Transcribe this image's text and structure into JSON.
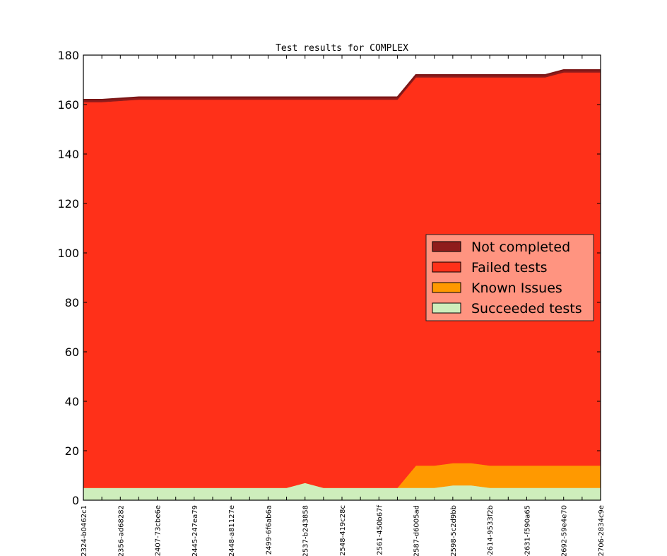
{
  "chart_data": {
    "type": "area",
    "stacked": true,
    "title": "Test results for COMPLEX",
    "xlabel": "",
    "ylabel": "",
    "ylim": [
      0,
      180
    ],
    "yticks": [
      0,
      20,
      40,
      60,
      80,
      100,
      120,
      140,
      160,
      180
    ],
    "grid": false,
    "legend_position": "center-right",
    "x": [
      "2324-b0462c1",
      "",
      "2356-ad68282",
      "",
      "2407-73cbe6e",
      "",
      "2445-247ea79",
      "",
      "2448-a81127e",
      "",
      "2499-6f6ab6a",
      "",
      "2537-b243858",
      "",
      "2548-419c28c",
      "",
      "2561-450b67f",
      "",
      "2587-d6005ad",
      "",
      "2598-5c2d9bb",
      "",
      "-2614-9533f2b",
      "",
      "-2631-f590a65",
      "",
      "2692-59e4e70",
      "",
      "2706-2834c9e"
    ],
    "series": [
      {
        "name": "Succeeded tests",
        "color": "#ceeebc",
        "values": [
          5,
          5,
          5,
          5,
          5,
          5,
          5,
          5,
          5,
          5,
          5,
          5,
          7,
          5,
          5,
          5,
          5,
          5,
          5,
          5,
          6,
          6,
          5,
          5,
          5,
          5,
          5,
          5,
          5
        ]
      },
      {
        "name": "Known Issues",
        "color": "#ff9900",
        "values": [
          0,
          0,
          0,
          0,
          0,
          0,
          0,
          0,
          0,
          0,
          0,
          0,
          0,
          0,
          0,
          0,
          0,
          0,
          9,
          9,
          9,
          9,
          9,
          9,
          9,
          9,
          9,
          9,
          9
        ]
      },
      {
        "name": "Failed tests",
        "color": "#ff3019",
        "values": [
          156,
          156,
          156.5,
          157,
          157,
          157,
          157,
          157,
          157,
          157,
          157,
          157,
          155,
          157,
          157,
          157,
          157,
          157,
          157,
          157,
          156,
          156,
          157,
          157,
          157,
          157,
          159,
          159,
          159
        ]
      },
      {
        "name": "Not completed",
        "color": "#8f1c1c",
        "values": [
          1,
          1,
          1,
          1,
          1,
          1,
          1,
          1,
          1,
          1,
          1,
          1,
          1,
          1,
          1,
          1,
          1,
          1,
          1,
          1,
          1,
          1,
          1,
          1,
          1,
          1,
          1,
          1,
          1
        ]
      }
    ],
    "legend_order": [
      "Not completed",
      "Failed tests",
      "Known Issues",
      "Succeeded tests"
    ],
    "legend_background": "#ff9480"
  }
}
